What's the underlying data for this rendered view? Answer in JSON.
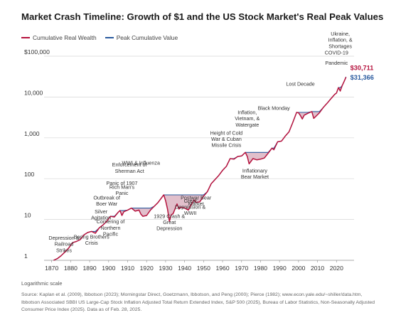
{
  "chart_data": {
    "type": "line",
    "title": "Market Crash Timeline: Growth of $1 and the US Stock Market's Real Peak Values",
    "y_scale": "log",
    "ylim": [
      1,
      100000
    ],
    "xlim": [
      1866,
      2027
    ],
    "y_ticks": [
      1,
      10,
      100,
      1000,
      10000,
      100000
    ],
    "y_tick_labels": [
      "1",
      "10",
      "100",
      "1,000",
      "10,000",
      "$100,000"
    ],
    "x_ticks": [
      1870,
      1880,
      1890,
      1900,
      1910,
      1920,
      1930,
      1940,
      1950,
      1960,
      1970,
      1980,
      1990,
      2000,
      2010,
      2020
    ],
    "x_tick_labels": [
      "1870",
      "1880",
      "1890",
      "1900",
      "1910",
      "1920",
      "1930",
      "1940",
      "1950",
      "1960",
      "1970",
      "1980",
      "1990",
      "2000",
      "2010",
      "2020"
    ],
    "axis_note": "Logarithmic scale",
    "series": [
      {
        "name": "Cumulative Real Wealth",
        "color": "#b5123d",
        "end_label": "$30,711",
        "x": [
          1871,
          1873,
          1875,
          1877,
          1879,
          1881,
          1883,
          1885,
          1887,
          1889,
          1891,
          1893,
          1895,
          1897,
          1899,
          1901,
          1903,
          1905,
          1906,
          1907,
          1908,
          1910,
          1912,
          1914,
          1916,
          1917,
          1918,
          1920,
          1922,
          1924,
          1926,
          1929,
          1930,
          1931,
          1932,
          1933,
          1934,
          1936,
          1937,
          1938,
          1940,
          1942,
          1943,
          1945,
          1946,
          1948,
          1950,
          1952,
          1954,
          1956,
          1958,
          1960,
          1962,
          1964,
          1966,
          1968,
          1970,
          1972,
          1973,
          1974,
          1976,
          1978,
          1980,
          1982,
          1984,
          1986,
          1987,
          1989,
          1991,
          1993,
          1995,
          1997,
          1999,
          2000,
          2001,
          2002,
          2003,
          2005,
          2007,
          2008,
          2009,
          2011,
          2013,
          2015,
          2017,
          2019,
          2020,
          2021,
          2022,
          2023,
          2024,
          2025
        ],
        "y": [
          1,
          1.1,
          1.3,
          1.6,
          2,
          2.7,
          2.9,
          3.2,
          4.2,
          4.8,
          5.1,
          4.6,
          6.2,
          7.3,
          9,
          12,
          11.5,
          15,
          16.5,
          12.5,
          15.5,
          17,
          19,
          16,
          17,
          13.5,
          12,
          12.5,
          17,
          21,
          26,
          40,
          29,
          18,
          9,
          13,
          14,
          24,
          18,
          20,
          19,
          17,
          21,
          30,
          26,
          27,
          37,
          48,
          75,
          95,
          120,
          160,
          200,
          310,
          300,
          350,
          360,
          440,
          350,
          230,
          310,
          290,
          300,
          320,
          420,
          560,
          510,
          800,
          830,
          1100,
          1400,
          2400,
          4200,
          4100,
          3500,
          2900,
          3600,
          4000,
          4400,
          3000,
          3300,
          4100,
          5500,
          7000,
          9000,
          11500,
          12500,
          17000,
          14000,
          19000,
          24000,
          30711
        ]
      },
      {
        "name": "Peak Cumulative Value",
        "color": "#2a5a9e",
        "end_label": "$31,366",
        "x": [
          1871,
          1873,
          1875,
          1877,
          1879,
          1881,
          1883,
          1885,
          1887,
          1889,
          1891,
          1893,
          1895,
          1897,
          1899,
          1901,
          1903,
          1905,
          1906,
          1907,
          1908,
          1910,
          1912,
          1914,
          1916,
          1917,
          1918,
          1920,
          1922,
          1924,
          1926,
          1929,
          1930,
          1931,
          1932,
          1933,
          1934,
          1936,
          1937,
          1938,
          1940,
          1942,
          1943,
          1945,
          1946,
          1948,
          1950,
          1952,
          1954,
          1956,
          1958,
          1960,
          1962,
          1964,
          1966,
          1968,
          1970,
          1972,
          1973,
          1974,
          1976,
          1978,
          1980,
          1982,
          1984,
          1986,
          1987,
          1989,
          1991,
          1993,
          1995,
          1997,
          1999,
          2000,
          2001,
          2002,
          2003,
          2005,
          2007,
          2008,
          2009,
          2011,
          2013,
          2015,
          2017,
          2019,
          2020,
          2021,
          2022,
          2023,
          2024,
          2025
        ],
        "y": [
          1,
          1.1,
          1.3,
          1.6,
          2,
          2.7,
          2.9,
          3.2,
          4.2,
          4.8,
          5.1,
          5.1,
          6.2,
          7.3,
          9,
          12,
          12,
          15,
          16.5,
          16.5,
          16.5,
          17,
          19,
          19,
          19,
          19,
          19,
          19,
          19,
          21,
          26,
          40,
          40,
          40,
          40,
          40,
          40,
          40,
          40,
          40,
          40,
          40,
          40,
          40,
          40,
          40,
          40,
          48,
          75,
          95,
          120,
          160,
          200,
          310,
          310,
          350,
          360,
          440,
          440,
          440,
          440,
          440,
          440,
          440,
          440,
          560,
          560,
          800,
          830,
          1100,
          1400,
          2400,
          4200,
          4200,
          4200,
          4200,
          4200,
          4200,
          4400,
          4400,
          4400,
          4400,
          5500,
          7000,
          9000,
          11500,
          12500,
          17000,
          17000,
          19000,
          24000,
          31366
        ]
      }
    ],
    "annotations": [
      {
        "text": "Depression & Railroad Strikes",
        "x": 1874,
        "y": 1.6
      },
      {
        "text": "Baring Brothers Crisis",
        "x": 1891,
        "y": 2.4
      },
      {
        "text": "Cornering of Northern Pacific",
        "x": 1901,
        "y": 4.0
      },
      {
        "text": "Silver Agitation",
        "x": 1896,
        "y": 10
      },
      {
        "text": "Outbreak of Boer War",
        "x": 1899,
        "y": 22
      },
      {
        "text": "Rich Man's Panic",
        "x": 1907,
        "y": 40
      },
      {
        "text": "Panic of 1907",
        "x": 1907,
        "y": 70
      },
      {
        "text": "Enforcement of Sherman Act",
        "x": 1911,
        "y": 140
      },
      {
        "text": "WWI & Influenza",
        "x": 1917,
        "y": 220
      },
      {
        "text": "1929 Crash & Great Depression",
        "x": 1932,
        "y": 5.5
      },
      {
        "text": "Great Depression & WWII",
        "x": 1943,
        "y": 13
      },
      {
        "text": "Postwar Bear Market",
        "x": 1946,
        "y": 22
      },
      {
        "text": "Height of Cold War & Cuban Missile Crisis",
        "x": 1962,
        "y": 600
      },
      {
        "text": "Inflation, Vietnam, & Watergate",
        "x": 1973,
        "y": 1900
      },
      {
        "text": "Inflationary Bear Market",
        "x": 1977,
        "y": 100
      },
      {
        "text": "Black Monday",
        "x": 1987,
        "y": 4800
      },
      {
        "text": "Lost Decade",
        "x": 2001,
        "y": 19000
      },
      {
        "text": "Pandemic",
        "x": 2020,
        "y": 62000
      },
      {
        "text": "COVID-19",
        "x": 2020,
        "y": 110000
      },
      {
        "text": "Ukraine, Inflation, & Shortages",
        "x": 2022,
        "y": 160000
      }
    ]
  },
  "legend": {
    "real_wealth": "Cumulative Real Wealth",
    "peak_value": "Peak Cumulative Value"
  },
  "footer": {
    "axis_note": "Logarithmic scale",
    "source": "Source: Kaplan et al. (2009), Ibbotson (2023); Morningstar Direct, Goetzmann, Ibbotson, and Peng (2000); Pierce (1982); www.econ.yale.edu/~shiller/data.htm, Ibbotson Associated SBBI US Large-Cap Stock Inflation Adjusted Total Return Extended Index, S&P 500 (2025), Bureau of Labor Statistics, Non-Seasonally Adjusted Consumer Price Index (2025). Data as of Feb. 28, 2025."
  }
}
